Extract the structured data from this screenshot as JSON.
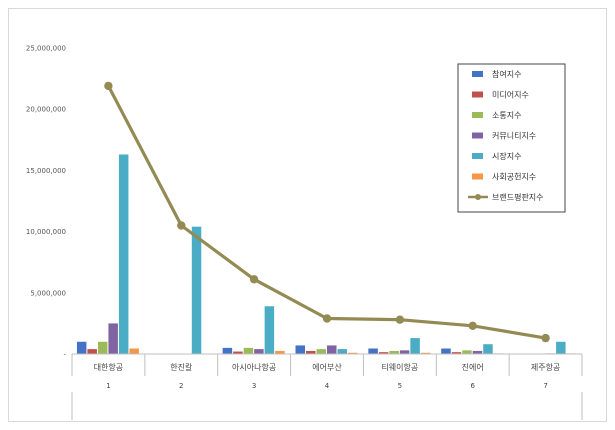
{
  "chart_data": {
    "type": "bar",
    "categories": [
      "대한항공",
      "한진칼",
      "아시아나항공",
      "에어부산",
      "티웨이항공",
      "진에어",
      "제주항공"
    ],
    "category_numbers": [
      "1",
      "2",
      "3",
      "4",
      "5",
      "6",
      "7"
    ],
    "ylim": [
      0,
      25000000
    ],
    "yticks": [
      0,
      5000000,
      10000000,
      15000000,
      20000000,
      25000000
    ],
    "ytick_labels": [
      "-",
      "5,000,000",
      "10,000,000",
      "15,000,000",
      "20,000,000",
      "25,000,000"
    ],
    "grid": false,
    "legend_position": "right",
    "series": [
      {
        "name": "참여지수",
        "kind": "bar",
        "color": "#4472c4",
        "values": [
          1000000,
          0,
          500000,
          700000,
          450000,
          450000,
          0
        ]
      },
      {
        "name": "미디어지수",
        "kind": "bar",
        "color": "#c0504d",
        "values": [
          400000,
          0,
          200000,
          250000,
          150000,
          150000,
          0
        ]
      },
      {
        "name": "소통지수",
        "kind": "bar",
        "color": "#9bbb59",
        "values": [
          1000000,
          0,
          500000,
          400000,
          250000,
          300000,
          0
        ]
      },
      {
        "name": "커뮤니티지수",
        "kind": "bar",
        "color": "#8064a2",
        "values": [
          2500000,
          0,
          400000,
          700000,
          300000,
          250000,
          50000
        ]
      },
      {
        "name": "시장지수",
        "kind": "bar",
        "color": "#4bacc6",
        "values": [
          16300000,
          10400000,
          3900000,
          400000,
          1300000,
          800000,
          1000000
        ]
      },
      {
        "name": "사회공헌지수",
        "kind": "bar",
        "color": "#f79646",
        "values": [
          450000,
          0,
          250000,
          100000,
          100000,
          50000,
          50000
        ]
      },
      {
        "name": "브랜드평판지수",
        "kind": "line",
        "color": "#948a54",
        "values": [
          21900000,
          10500000,
          6100000,
          2900000,
          2800000,
          2300000,
          1300000
        ]
      }
    ]
  }
}
